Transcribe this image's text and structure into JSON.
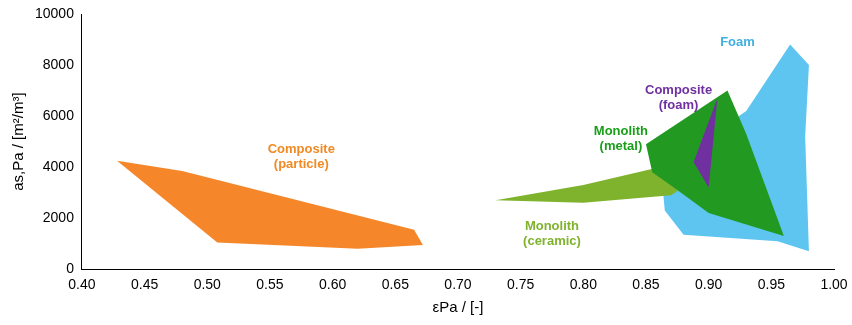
{
  "chart_data": {
    "type": "area",
    "x_label": "εPa / [-]",
    "y_label": "as,Pa / [m²/m³]",
    "xlim": [
      0.4,
      1.0
    ],
    "xticks": [
      {
        "value": 0.4,
        "label": "0.40"
      },
      0.45,
      {
        "value": 0.5,
        "label": "0.50"
      },
      0.55,
      {
        "value": 0.6,
        "label": "0.60"
      },
      0.65,
      {
        "value": 0.7,
        "label": "0.70"
      },
      0.75,
      {
        "value": 0.8,
        "label": "0.80"
      },
      0.85,
      {
        "value": 0.9,
        "label": "0.90"
      },
      0.95,
      {
        "value": 1.0,
        "label": "1.00"
      }
    ],
    "ylim": [
      0,
      10000
    ],
    "yticks": [
      0,
      2000,
      4000,
      6000,
      8000,
      10000
    ],
    "grid": false,
    "series": [
      {
        "name": "Composite (particle)",
        "color": "#f5862a",
        "x": [
          0.428,
          0.48,
          0.665,
          0.672,
          0.62,
          0.508
        ],
        "values": [
          4250,
          3850,
          1550,
          950,
          800,
          1050
        ]
      },
      {
        "name": "Foam",
        "color": "#5ec4f0",
        "x": [
          0.862,
          0.93,
          0.965,
          0.98,
          0.977,
          0.98,
          0.955,
          0.88,
          0.865
        ],
        "values": [
          3900,
          6200,
          8800,
          8000,
          5200,
          700,
          1100,
          1350,
          2300
        ]
      },
      {
        "name": "Monolith (ceramic)",
        "color": "#7fb32e",
        "x": [
          0.73,
          0.8,
          0.87,
          0.888,
          0.87,
          0.8
        ],
        "values": [
          2700,
          3300,
          4100,
          3500,
          2900,
          2600
        ]
      },
      {
        "name": "Monolith (metal)",
        "color": "#229a22",
        "x": [
          0.85,
          0.915,
          0.93,
          0.96,
          0.9,
          0.875,
          0.855
        ],
        "values": [
          4900,
          7000,
          5300,
          1300,
          2200,
          3100,
          3800
        ]
      },
      {
        "name": "Composite (foam)",
        "color": "#7030a0",
        "x": [
          0.888,
          0.907,
          0.9
        ],
        "values": [
          4200,
          6700,
          3200
        ]
      }
    ],
    "annotations": [
      {
        "text": "Composite (particle)",
        "x": 0.575,
        "y": 4400,
        "color": "#f08a24"
      },
      {
        "text": "Foam",
        "x": 0.923,
        "y": 8900,
        "color": "#3fb0e0"
      },
      {
        "text": "Monolith (ceramic)",
        "x": 0.775,
        "y": 1400,
        "color": "#7fb32e"
      },
      {
        "text": "Monolith (metal)",
        "x": 0.83,
        "y": 5100,
        "color": "#1a9e1a"
      },
      {
        "text": "Composite (foam)",
        "x": 0.876,
        "y": 6700,
        "color": "#7030a0"
      }
    ]
  }
}
